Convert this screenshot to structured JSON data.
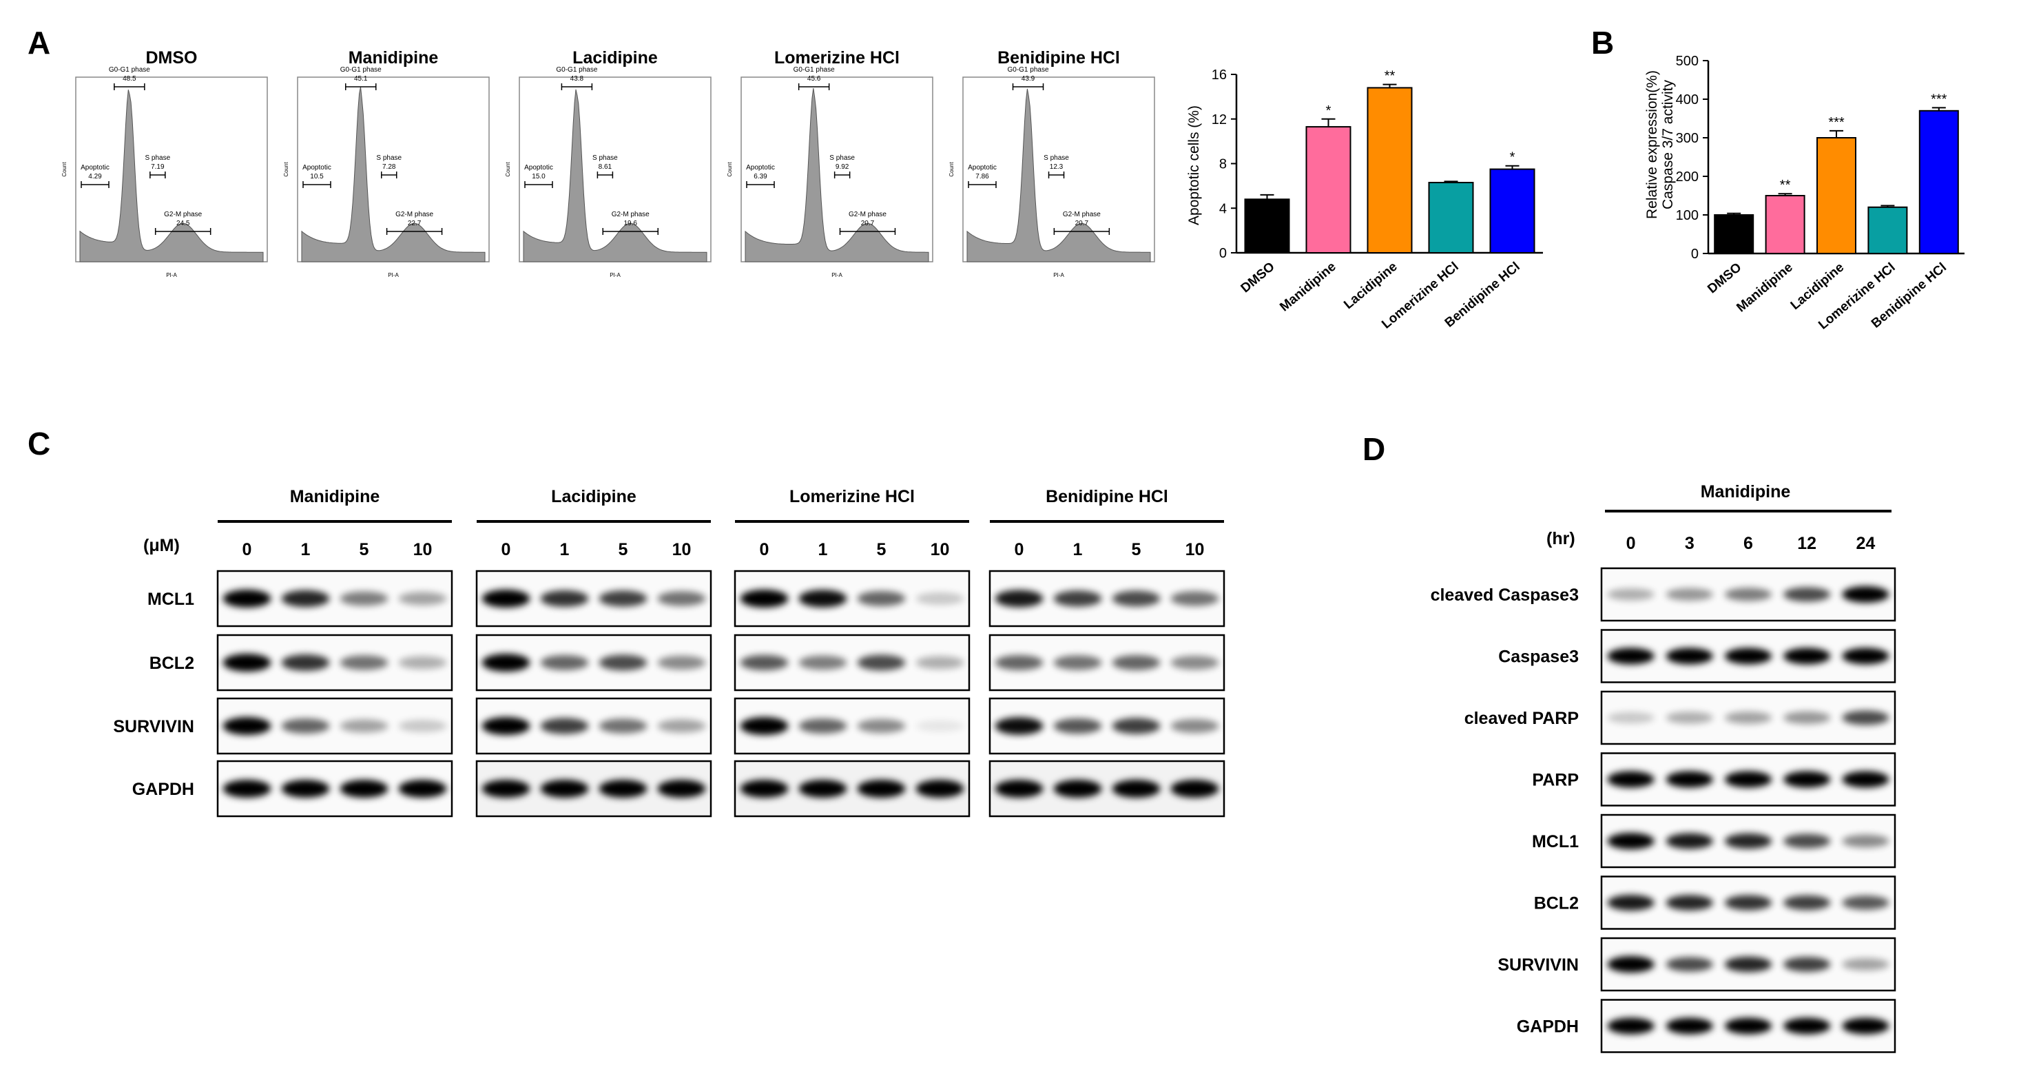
{
  "panels": {
    "a": "A",
    "b": "B",
    "c": "C",
    "d": "D"
  },
  "flow": {
    "histograms": [
      {
        "title": "DMSO",
        "apoptotic": "4.29",
        "g0g1": "48.5",
        "s": "7.19",
        "g2m": "24.5"
      },
      {
        "title": "Manidipine",
        "apoptotic": "10.5",
        "g0g1": "45.1",
        "s": "7.28",
        "g2m": "22.7"
      },
      {
        "title": "Lacidipine",
        "apoptotic": "15.0",
        "g0g1": "43.8",
        "s": "8.61",
        "g2m": "19.6"
      },
      {
        "title": "Lomerizine HCl",
        "apoptotic": "6.39",
        "g0g1": "45.6",
        "s": "9.92",
        "g2m": "20.7"
      },
      {
        "title": "Benidipine HCl",
        "apoptotic": "7.86",
        "g0g1": "43.9",
        "s": "12.3",
        "g2m": "20.7"
      }
    ],
    "labels": {
      "apoptotic": "Apoptotic",
      "g0g1": "G0-G1 phase",
      "s": "S phase",
      "g2m": "G2-M phase",
      "x_axis": "PI-A",
      "y_axis": "Count"
    }
  },
  "chart_data": [
    {
      "type": "bar",
      "categories": [
        "DMSO",
        "Manidipine",
        "Lacidipine",
        "Lomerizine HCl",
        "Benidipine HCl"
      ],
      "values": [
        4.8,
        11.3,
        14.8,
        6.3,
        7.5
      ],
      "errors": [
        0.4,
        0.7,
        0.3,
        0.1,
        0.3
      ],
      "significance": [
        "",
        "*",
        "**",
        "",
        "*"
      ],
      "colors": [
        "#000000",
        "#ff6c9c",
        "#ff8c00",
        "#089fa2",
        "#0000ff"
      ],
      "ylabel": "Apoptotic cells (%)",
      "ylim": [
        0,
        16
      ],
      "yticks": [
        "0",
        "4",
        "8",
        "12",
        "16"
      ]
    },
    {
      "type": "bar",
      "categories": [
        "DMSO",
        "Manidipine",
        "Lacidipine",
        "Lomerizine HCl",
        "Benidipine HCl"
      ],
      "values": [
        100,
        150,
        300,
        120,
        370
      ],
      "errors": [
        4,
        5,
        18,
        4,
        8
      ],
      "significance": [
        "",
        "**",
        "***",
        "",
        "***"
      ],
      "colors": [
        "#000000",
        "#ff6c9c",
        "#ff8c00",
        "#089fa2",
        "#0000ff"
      ],
      "ylabel": [
        "Relative expression(%)",
        "Caspase 3/7 activity"
      ],
      "ylim": [
        0,
        500
      ],
      "yticks": [
        "0",
        "100",
        "200",
        "300",
        "400",
        "500"
      ]
    }
  ],
  "blot_c": {
    "unit": "(μM)",
    "groups": [
      {
        "name": "Manidipine",
        "doses": [
          "0",
          "1",
          "5",
          "10"
        ]
      },
      {
        "name": "Lacidipine",
        "doses": [
          "0",
          "1",
          "5",
          "10"
        ]
      },
      {
        "name": "Lomerizine HCl",
        "doses": [
          "0",
          "1",
          "5",
          "10"
        ]
      },
      {
        "name": "Benidipine HCl",
        "doses": [
          "0",
          "1",
          "5",
          "10"
        ]
      }
    ],
    "rows": [
      {
        "label": "MCL1",
        "levels": [
          [
            1,
            0.85,
            0.5,
            0.35
          ],
          [
            1,
            0.8,
            0.75,
            0.55
          ],
          [
            1,
            0.95,
            0.6,
            0.2
          ],
          [
            0.9,
            0.75,
            0.7,
            0.55
          ]
        ]
      },
      {
        "label": "BCL2",
        "levels": [
          [
            1,
            0.8,
            0.55,
            0.3
          ],
          [
            1,
            0.6,
            0.7,
            0.45
          ],
          [
            0.65,
            0.5,
            0.7,
            0.3
          ],
          [
            0.6,
            0.55,
            0.6,
            0.45
          ]
        ]
      },
      {
        "label": "SURVIVIN",
        "levels": [
          [
            1,
            0.6,
            0.35,
            0.2
          ],
          [
            1,
            0.75,
            0.55,
            0.35
          ],
          [
            1,
            0.6,
            0.45,
            0.08
          ],
          [
            0.95,
            0.65,
            0.75,
            0.45
          ]
        ]
      },
      {
        "label": "GAPDH",
        "levels": [
          [
            1,
            1,
            1,
            1
          ],
          [
            1,
            1,
            1,
            1
          ],
          [
            1,
            1,
            1,
            1
          ],
          [
            1,
            1,
            1,
            1
          ]
        ]
      }
    ]
  },
  "blot_d": {
    "treatment": "Manidipine",
    "unit": "(hr)",
    "times": [
      "0",
      "3",
      "6",
      "12",
      "24"
    ],
    "rows": [
      {
        "label": "cleaved Caspase3",
        "levels": [
          0.3,
          0.4,
          0.5,
          0.7,
          1
        ]
      },
      {
        "label": "Caspase3",
        "levels": [
          1,
          1,
          1,
          1,
          1
        ]
      },
      {
        "label": "cleaved PARP",
        "levels": [
          0.2,
          0.3,
          0.35,
          0.4,
          0.7
        ]
      },
      {
        "label": "PARP",
        "levels": [
          1,
          1,
          1,
          1,
          1
        ]
      },
      {
        "label": "MCL1",
        "levels": [
          1,
          0.9,
          0.85,
          0.7,
          0.45
        ]
      },
      {
        "label": "BCL2",
        "levels": [
          0.9,
          0.85,
          0.8,
          0.75,
          0.65
        ]
      },
      {
        "label": "SURVIVIN",
        "levels": [
          1,
          0.7,
          0.85,
          0.75,
          0.35
        ]
      },
      {
        "label": "GAPDH",
        "levels": [
          1,
          1,
          1,
          1,
          1
        ]
      }
    ]
  }
}
